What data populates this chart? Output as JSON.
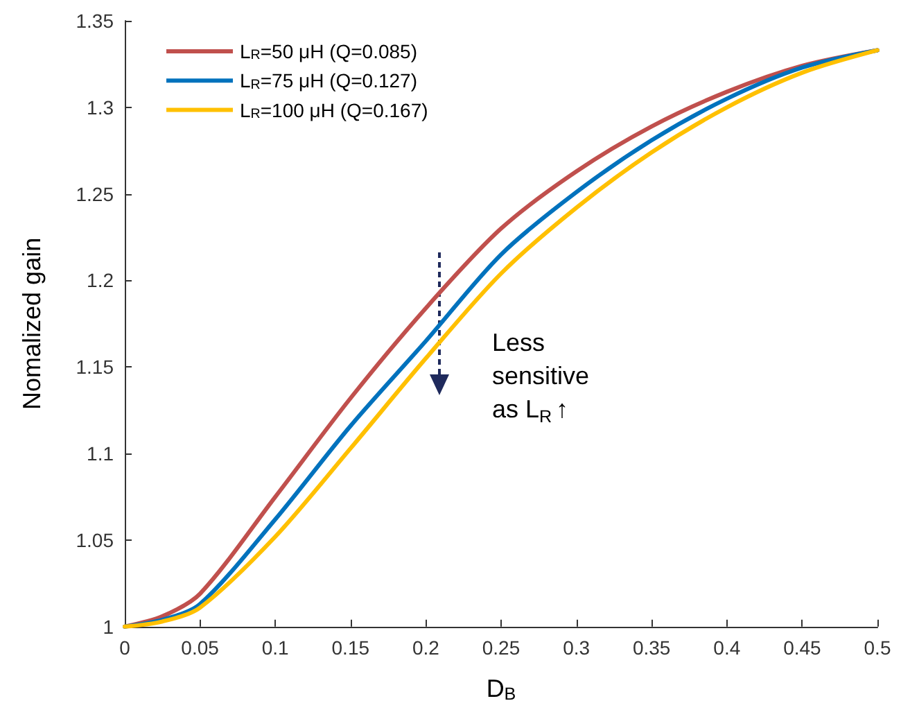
{
  "chart_data": {
    "type": "line",
    "xlabel": "D$_{B}$",
    "ylabel": "Nomalized gain",
    "x": [
      0,
      0.025,
      0.05,
      0.1,
      0.15,
      0.2,
      0.25,
      0.3,
      0.35,
      0.4,
      0.45,
      0.5
    ],
    "series": [
      {
        "name": "L$_{R}$=50 μH (Q=0.085)",
        "color": "#c0504d",
        "values": [
          1,
          1.006,
          1.019,
          1.075,
          1.132,
          1.184,
          1.23,
          1.263,
          1.289,
          1.309,
          1.324,
          1.333
        ]
      },
      {
        "name": "L$_{R}$=75 μH (Q=0.127)",
        "color": "#0072bd",
        "values": [
          1,
          1.004,
          1.013,
          1.062,
          1.116,
          1.165,
          1.215,
          1.251,
          1.281,
          1.305,
          1.323,
          1.333
        ]
      },
      {
        "name": "L$_{R}$=100 μH (Q=0.167)",
        "color": "#ffc000",
        "values": [
          1,
          1.003,
          1.011,
          1.052,
          1.103,
          1.155,
          1.204,
          1.242,
          1.274,
          1.3,
          1.32,
          1.333
        ]
      }
    ],
    "xlim": [
      0,
      0.5
    ],
    "xticks": [
      0,
      0.05,
      0.1,
      0.15,
      0.2,
      0.25,
      0.3,
      0.35,
      0.4,
      0.45,
      0.5
    ],
    "ylim": [
      1,
      1.35
    ],
    "yticks": [
      1,
      1.05,
      1.1,
      1.15,
      1.2,
      1.25,
      1.3,
      1.35
    ],
    "grid": false,
    "legend": "top left",
    "marker": "none",
    "line_style": "solid",
    "annotations": [
      "Less sensitive as L$_{R}$ ↑"
    ]
  }
}
